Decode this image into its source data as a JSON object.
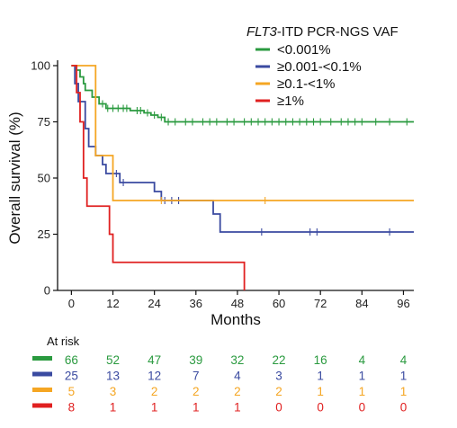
{
  "chart_data": {
    "type": "line",
    "step": true,
    "xlabel": "Months",
    "ylabel": "Overall survival (%)",
    "xlim": [
      -4,
      99
    ],
    "ylim": [
      0,
      100
    ],
    "xticks": [
      0,
      12,
      24,
      36,
      48,
      60,
      72,
      84,
      96
    ],
    "yticks": [
      0,
      25,
      50,
      75,
      100
    ],
    "legend": {
      "title_italic": "FLT3",
      "title_rest": "-ITD PCR-NGS VAF",
      "placement": "top-right"
    },
    "series": [
      {
        "name": "<0.001%",
        "color": "#2a9a3f",
        "points": [
          [
            0,
            100
          ],
          [
            1.5,
            98
          ],
          [
            2.5,
            95
          ],
          [
            3.5,
            92
          ],
          [
            4,
            89
          ],
          [
            6,
            86
          ],
          [
            8,
            83
          ],
          [
            10,
            81
          ],
          [
            17,
            80
          ],
          [
            21,
            79
          ],
          [
            23,
            78
          ],
          [
            25,
            77
          ],
          [
            27,
            75
          ],
          [
            99,
            75
          ]
        ],
        "censor": [
          9,
          10.5,
          12,
          13.5,
          15,
          16,
          19,
          20,
          22,
          24,
          26,
          28,
          30,
          33,
          35,
          38,
          40,
          42,
          45,
          47,
          50,
          52,
          54,
          56,
          58,
          60,
          62,
          64,
          66,
          68,
          70,
          72,
          75,
          78,
          80,
          82,
          84,
          88,
          92,
          97
        ]
      },
      {
        "name": "≥0.001-<0.1%",
        "color": "#3a4aa0",
        "points": [
          [
            0,
            100
          ],
          [
            1,
            92
          ],
          [
            2,
            84
          ],
          [
            4,
            72
          ],
          [
            5,
            64
          ],
          [
            7,
            60
          ],
          [
            9,
            56
          ],
          [
            10,
            52
          ],
          [
            14,
            48
          ],
          [
            24,
            44
          ],
          [
            26,
            40
          ],
          [
            41,
            34
          ],
          [
            43,
            26
          ],
          [
            99,
            26
          ]
        ],
        "censor": [
          13,
          15,
          27,
          29,
          31,
          55,
          69,
          71,
          92
        ]
      },
      {
        "name": "≥0.1-<1%",
        "color": "#f5a623",
        "points": [
          [
            0,
            100
          ],
          [
            6.5,
            100
          ],
          [
            7,
            60
          ],
          [
            11,
            60
          ],
          [
            12,
            40
          ],
          [
            99,
            40
          ]
        ],
        "censor": [
          26,
          56
        ]
      },
      {
        "name": "≥1%",
        "color": "#e02020",
        "points": [
          [
            0,
            100
          ],
          [
            1.5,
            88
          ],
          [
            2.5,
            75
          ],
          [
            3.5,
            50
          ],
          [
            4.5,
            37.5
          ],
          [
            10,
            37.5
          ],
          [
            11,
            25
          ],
          [
            12,
            12.5
          ],
          [
            50,
            12.5
          ],
          [
            50,
            0
          ]
        ],
        "censor": []
      }
    ],
    "at_risk": {
      "title": "At risk",
      "times": [
        0,
        12,
        24,
        36,
        48,
        60,
        72,
        84,
        96
      ],
      "rows": [
        {
          "color": "#2a9a3f",
          "values": [
            "66",
            "52",
            "47",
            "39",
            "32",
            "22",
            "16",
            "4",
            "4"
          ]
        },
        {
          "color": "#3a4aa0",
          "values": [
            "25",
            "13",
            "12",
            "7",
            "4",
            "3",
            "1",
            "1",
            "1"
          ]
        },
        {
          "color": "#f5a623",
          "values": [
            "5",
            "3",
            "2",
            "2",
            "2",
            "2",
            "1",
            "1",
            "1"
          ]
        },
        {
          "color": "#e02020",
          "values": [
            "8",
            "1",
            "1",
            "1",
            "1",
            "0",
            "0",
            "0",
            "0"
          ]
        }
      ]
    }
  }
}
